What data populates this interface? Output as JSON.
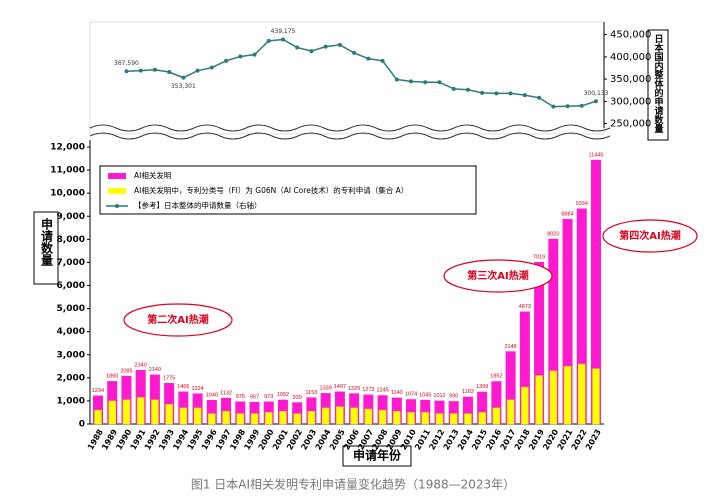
{
  "chart_data": {
    "type": "bar",
    "caption": "图1 日本AI相关发明专利申请量变化趋势（1988—2023年）",
    "x_label": "申请年份",
    "y_label": "申请数量",
    "y2_label": "日本国内整体的申请数量",
    "categories": [
      "1988",
      "1989",
      "1990",
      "1991",
      "1992",
      "1993",
      "1994",
      "1995",
      "1996",
      "1997",
      "1998",
      "1999",
      "2000",
      "2001",
      "2002",
      "2003",
      "2004",
      "2005",
      "2006",
      "2007",
      "2008",
      "2009",
      "2010",
      "2011",
      "2012",
      "2013",
      "2014",
      "2015",
      "2016",
      "2017",
      "2018",
      "2019",
      "2020",
      "2021",
      "2022",
      "2023"
    ],
    "series": [
      {
        "name": "AI相关发明",
        "color": "#ff1ad0",
        "values": [
          1234,
          1860,
          2085,
          2340,
          2140,
          1775,
          1406,
          1324,
          1040,
          1132,
          975,
          957,
          973,
          1052,
          939,
          1153,
          1339,
          1407,
          1329,
          1273,
          1245,
          1140,
          1074,
          1045,
          1012,
          990,
          1183,
          1399,
          1852,
          3148,
          4873,
          7019,
          8020,
          8884,
          9334,
          11445
        ]
      },
      {
        "name": "AI相关发明中，专利分类号（FI）为 G06N（AI Core技术）的专利申请（集合 A）",
        "color": "#ffff00",
        "values": [
          600,
          1000,
          1050,
          1150,
          1050,
          850,
          700,
          700,
          450,
          550,
          450,
          450,
          500,
          550,
          450,
          550,
          700,
          750,
          700,
          650,
          600,
          550,
          500,
          500,
          450,
          450,
          450,
          500,
          700,
          1050,
          1600,
          2100,
          2300,
          2500,
          2600,
          2400
        ]
      },
      {
        "name": "【参考】日本整体的申请数量（右轴）",
        "color": "#2e7a7a",
        "type": "line",
        "axis": "y2",
        "values": [
          null,
          null,
          367590,
          369000,
          371000,
          366000,
          353301,
          369000,
          376000,
          391000,
          401000,
          405000,
          436000,
          439175,
          421000,
          413000,
          423000,
          427000,
          409000,
          396000,
          391000,
          349000,
          345000,
          343000,
          343000,
          328000,
          326000,
          319000,
          318000,
          318000,
          314000,
          308000,
          288000,
          289000,
          290000,
          300133
        ],
        "value_labels": [
          null,
          null,
          "367,590",
          null,
          null,
          null,
          "353,301",
          null,
          null,
          null,
          null,
          null,
          null,
          "439,175",
          null,
          null,
          null,
          null,
          null,
          null,
          null,
          null,
          null,
          null,
          null,
          null,
          null,
          null,
          null,
          null,
          null,
          null,
          null,
          null,
          null,
          "300,133"
        ]
      }
    ],
    "ylim": [
      0,
      12000
    ],
    "yticks": [
      0,
      {
        "value": 1000,
        "label": "1,000"
      },
      {
        "value": 2000,
        "label": "2,000"
      },
      {
        "value": 3000,
        "label": "3,000"
      },
      {
        "value": 4000,
        "label": "4,000"
      },
      {
        "value": 5000,
        "label": "5,000"
      },
      {
        "value": 6000,
        "label": "6,000"
      },
      {
        "value": 7000,
        "label": "7,000"
      },
      {
        "value": 8000,
        "label": "8,000"
      },
      {
        "value": 9000,
        "label": "9,000"
      },
      {
        "value": 10000,
        "label": "10,000"
      },
      {
        "value": 11000,
        "label": "11,000"
      },
      {
        "value": 12000,
        "label": "12,000"
      }
    ],
    "y2lim": [
      240000,
      465000
    ],
    "y2ticks": [
      {
        "value": 250000,
        "label": "250,000"
      },
      {
        "value": 300000,
        "label": "300,000"
      },
      {
        "value": 350000,
        "label": "350,000"
      },
      {
        "value": 400000,
        "label": "400,000"
      },
      {
        "value": 450000,
        "label": "450,000"
      }
    ],
    "annotations": [
      "第二次AI热潮",
      "第三次AI热潮",
      "第四次AI热潮"
    ]
  }
}
